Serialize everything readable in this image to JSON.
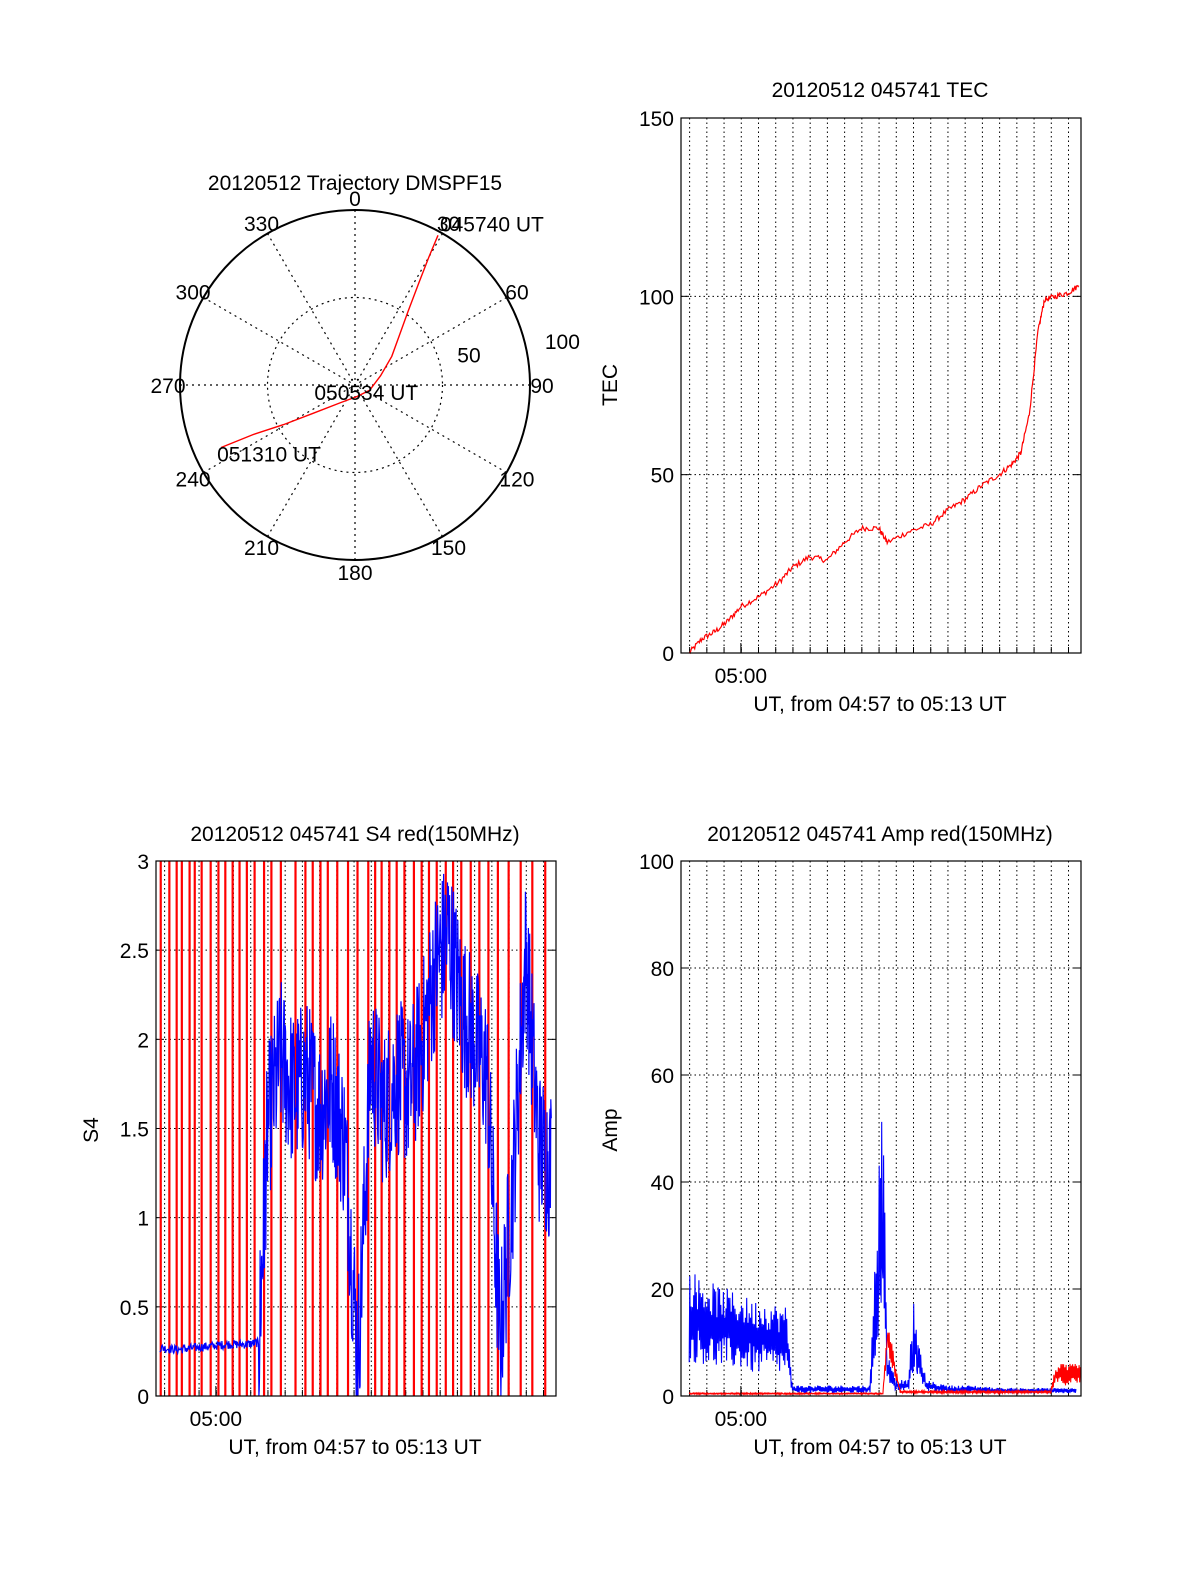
{
  "chart_data": [
    {
      "type": "polar",
      "title": "20120512 Trajectory DMSPF15",
      "angle_labels": [
        "0",
        "30",
        "60",
        "90",
        "120",
        "150",
        "180",
        "210",
        "240",
        "270",
        "300",
        "330"
      ],
      "radial_labels": [
        "50",
        "100"
      ],
      "radial_values": [
        50,
        100
      ],
      "series": [
        {
          "color": "#ff0000",
          "points": [
            {
              "az": 29,
              "el": 2
            },
            {
              "az": 30,
              "el": 14
            },
            {
              "az": 32,
              "el": 28
            },
            {
              "az": 36,
              "el": 44
            },
            {
              "az": 42,
              "el": 56
            },
            {
              "az": 52,
              "el": 66
            },
            {
              "az": 70,
              "el": 76
            },
            {
              "az": 110,
              "el": 82
            },
            {
              "az": 170,
              "el": 84
            },
            {
              "az": 220,
              "el": 78
            },
            {
              "az": 236,
              "el": 64
            },
            {
              "az": 241,
              "el": 48
            },
            {
              "az": 244,
              "el": 32
            },
            {
              "az": 245,
              "el": 14
            }
          ]
        }
      ],
      "annotations": [
        {
          "text": "045740 UT",
          "az": 29,
          "el": 2
        },
        {
          "text": "050534 UT",
          "az": 178,
          "el": 70
        },
        {
          "text": "051310 UT",
          "az": 245,
          "el": 14
        }
      ]
    },
    {
      "type": "line",
      "title": "20120512 045741 TEC",
      "xlabel": "UT, from 04:57 to 05:13 UT",
      "ylabel": "TEC",
      "xlim": [
        "04:57:41",
        "05:13:10"
      ],
      "ylim": [
        0,
        150
      ],
      "yticks": [
        0,
        50,
        100,
        150
      ],
      "xticks": [
        {
          "label": "05:00",
          "value": "05:00:00"
        }
      ],
      "grid": true,
      "series": [
        {
          "color": "#ff0000",
          "x": [
            "04:58:00",
            "04:58:30",
            "04:59:00",
            "04:59:30",
            "05:00:00",
            "05:00:45",
            "05:01:30",
            "05:02:00",
            "05:02:40",
            "05:03:20",
            "05:04:00",
            "05:04:40",
            "05:05:20",
            "05:05:40",
            "05:06:30",
            "05:07:20",
            "05:08:00",
            "05:08:40",
            "05:09:20",
            "05:10:00",
            "05:10:30",
            "05:10:50",
            "05:11:10",
            "05:11:30",
            "05:11:45",
            "05:12:10",
            "05:12:40",
            "05:13:05"
          ],
          "y": [
            0,
            4,
            6,
            9,
            13,
            16,
            20,
            24,
            27,
            26,
            31,
            35,
            35,
            31,
            34,
            36,
            40,
            43,
            47,
            50,
            53,
            56,
            67,
            90,
            99,
            100,
            101,
            103
          ]
        }
      ]
    },
    {
      "type": "line",
      "title": "20120512 045741 S4 red(150MHz)",
      "xlabel": "UT, from 04:57 to 05:13 UT",
      "ylabel": "S4",
      "xlim": [
        "04:57:41",
        "05:13:10"
      ],
      "ylim": [
        0,
        3
      ],
      "yticks": [
        0,
        0.5,
        1,
        1.5,
        2,
        2.5,
        3
      ],
      "xticks": [
        {
          "label": "05:00",
          "value": "05:00:00"
        }
      ],
      "grid": true,
      "series": [
        {
          "color": "#ff0000",
          "style": "spikes",
          "x": [
            "04:57:52",
            "04:58:12",
            "04:58:29",
            "04:58:41",
            "04:58:59",
            "04:59:11",
            "04:59:27",
            "04:59:48",
            "05:00:06",
            "05:00:22",
            "05:00:39",
            "05:00:55",
            "05:01:12",
            "05:01:30",
            "05:01:52",
            "05:02:09",
            "05:02:31",
            "05:03:05",
            "05:03:28",
            "05:03:45",
            "05:04:03",
            "05:04:20",
            "05:04:42",
            "05:05:07",
            "05:05:29",
            "05:05:54",
            "05:06:10",
            "05:06:25",
            "05:06:43",
            "05:07:00",
            "05:07:18",
            "05:07:40",
            "05:07:58",
            "05:08:15",
            "05:08:33",
            "05:08:54",
            "05:09:11",
            "05:09:30",
            "05:09:52",
            "05:10:12",
            "05:10:33",
            "05:10:55",
            "05:11:20",
            "05:11:48",
            "05:12:15",
            "05:12:45"
          ],
          "y": [
            3,
            3,
            3,
            3,
            3,
            3,
            3,
            3,
            3,
            3,
            3,
            3,
            3,
            3,
            3,
            3,
            3,
            3,
            3,
            3,
            3,
            3,
            3,
            3,
            3,
            3,
            3,
            3,
            3,
            3,
            3,
            3,
            3,
            3,
            3,
            3,
            3,
            3,
            3,
            3,
            3,
            3,
            3,
            3,
            3,
            3
          ]
        },
        {
          "color": "#0000ff",
          "style": "noisy",
          "x": [
            "04:57:50",
            "04:58:30",
            "04:59:10",
            "04:59:50",
            "05:00:30",
            "05:01:10",
            "05:01:40",
            "05:02:00",
            "05:02:30",
            "05:03:00",
            "05:03:30",
            "05:04:00",
            "05:04:30",
            "05:05:00",
            "05:05:30",
            "05:06:00",
            "05:06:30",
            "05:07:00",
            "05:07:30",
            "05:08:00",
            "05:08:30",
            "05:09:00",
            "05:09:30",
            "05:10:00",
            "05:10:30",
            "05:11:00",
            "05:11:30",
            "05:12:00",
            "05:12:30",
            "05:13:00"
          ],
          "y": [
            0.27,
            0.26,
            0.27,
            0.28,
            0.29,
            0.29,
            0.3,
            1.5,
            1.9,
            1.7,
            1.8,
            1.6,
            1.75,
            1.4,
            0.2,
            1.9,
            1.6,
            1.8,
            1.7,
            2.0,
            2.4,
            2.6,
            2.2,
            2.0,
            1.8,
            0.3,
            1.2,
            2.5,
            1.4,
            1.3
          ]
        }
      ]
    },
    {
      "type": "line",
      "title": "20120512 045741 Amp red(150MHz)",
      "xlabel": "UT, from 04:57 to 05:13 UT",
      "ylabel": "Amp",
      "xlim": [
        "04:57:41",
        "05:13:10"
      ],
      "ylim": [
        0,
        100
      ],
      "yticks": [
        0,
        20,
        40,
        60,
        80,
        100
      ],
      "xticks": [
        {
          "label": "05:00",
          "value": "05:00:00"
        }
      ],
      "grid": true,
      "series": [
        {
          "color": "#0000ff",
          "style": "band",
          "x": [
            "04:58:00",
            "04:58:30",
            "04:59:00",
            "04:59:30",
            "05:00:00",
            "05:00:30",
            "05:01:00",
            "05:01:30",
            "05:01:45",
            "05:02:00",
            "05:03:00",
            "05:04:00",
            "05:05:00",
            "05:05:20",
            "05:05:30",
            "05:05:40",
            "05:06:00",
            "05:06:30",
            "05:06:40",
            "05:06:50",
            "05:07:10",
            "05:08:00",
            "05:09:00",
            "05:10:00",
            "05:11:00",
            "05:12:00",
            "05:13:00"
          ],
          "low": [
            6,
            6,
            5,
            5,
            5,
            4,
            4,
            4,
            4,
            0.5,
            0.5,
            0.5,
            0.5,
            10,
            20,
            3,
            1,
            1,
            3,
            3,
            1,
            0.5,
            0.5,
            0.5,
            0.5,
            0.5,
            0.5
          ],
          "high": [
            24,
            22,
            21,
            20,
            19,
            18,
            18,
            17,
            17,
            2,
            2,
            2,
            2,
            45,
            56,
            8,
            3,
            3,
            19,
            12,
            3,
            2,
            2,
            1.5,
            1.5,
            1.5,
            1.5
          ]
        },
        {
          "color": "#ff0000",
          "style": "band",
          "x": [
            "04:58:00",
            "05:01:40",
            "05:05:30",
            "05:05:40",
            "05:06:10",
            "05:12:00",
            "05:12:10",
            "05:13:10"
          ],
          "low": [
            0.3,
            0.3,
            0.3,
            8,
            0.5,
            0.5,
            2,
            2
          ],
          "high": [
            0.6,
            0.6,
            0.6,
            15,
            1,
            1,
            6,
            6
          ]
        }
      ]
    }
  ]
}
